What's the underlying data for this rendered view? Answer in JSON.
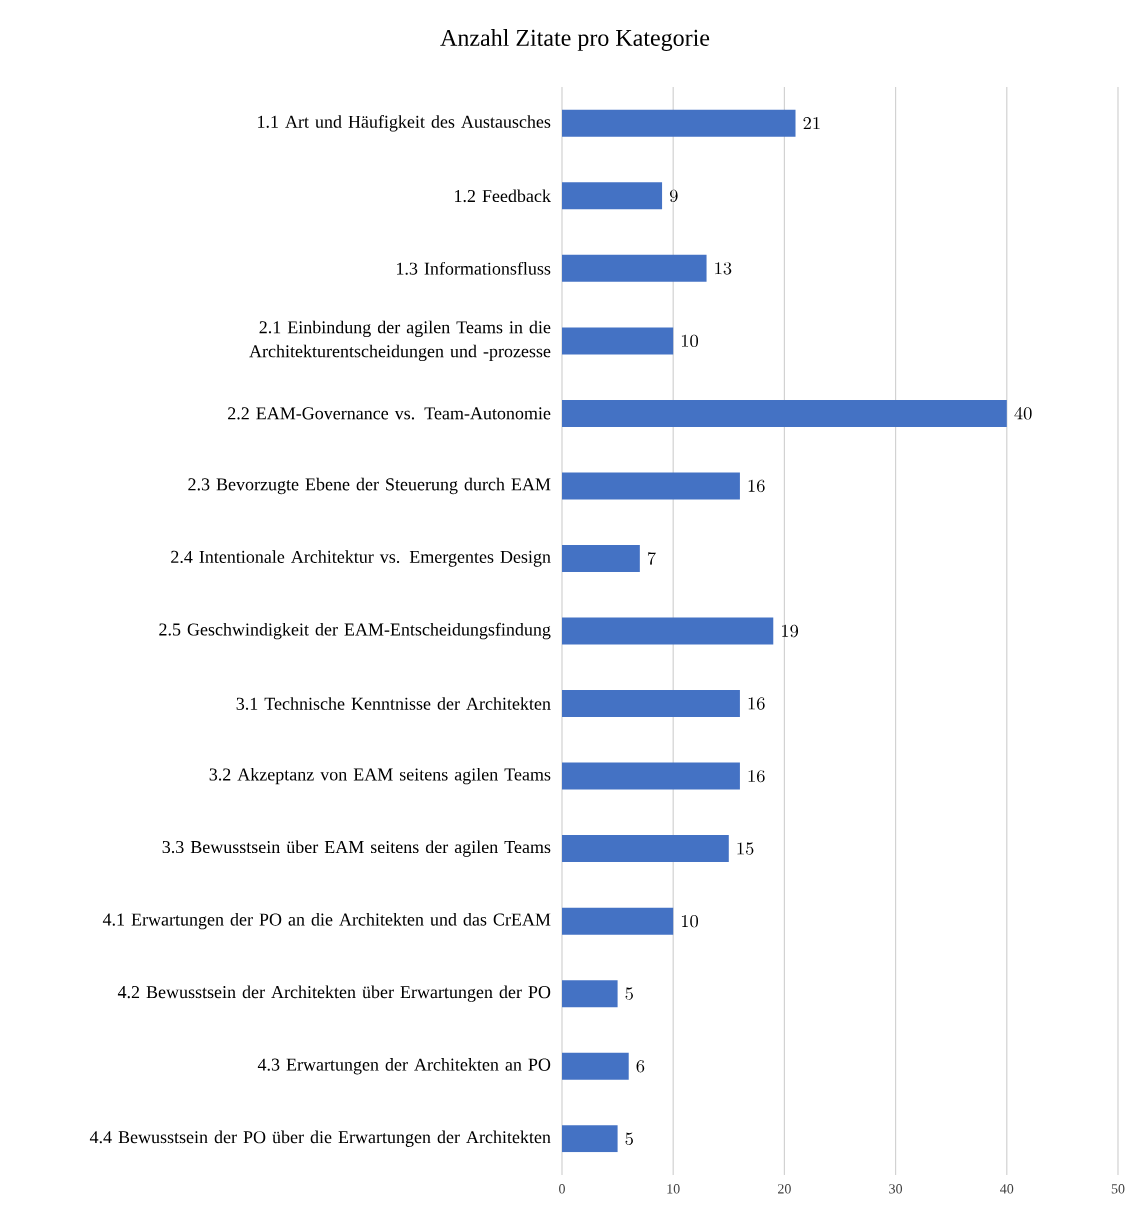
{
  "chart_data": {
    "type": "bar",
    "orientation": "horizontal",
    "title": "Anzahl  Zitate pro Kategorie",
    "categories": [
      "1.1 Art und Häufigkeit des Austausches",
      "1.2 Feedback",
      "1.3 Informationsfluss",
      "2.1 Einbindung der agilen Teams in die Architekturentscheidungen und -prozesse",
      "2.2 EAM-Governance vs. Team-Autonomie",
      "2.3 Bevorzugte Ebene der Steuerung durch EAM",
      "2.4 Intentionale Architektur vs. Emergentes Design",
      "2.5 Geschwindigkeit der EAM-Entscheidungsfindung",
      "3.1 Technische Kenntnisse der Architekten",
      "3.2 Akzeptanz von EAM seitens agilen Teams",
      "3.3 Bewusstsein über EAM seitens der agilen Teams",
      "4.1 Erwartungen der PO an die Architekten und das CrEAM",
      "4.2 Bewusstsein der Architekten über Erwartungen der PO",
      "4.3 Erwartungen der Architekten an PO",
      "4.4 Bewusstsein der PO über die Erwartungen der Architekten"
    ],
    "values": [
      21,
      9,
      13,
      10,
      40,
      16,
      7,
      19,
      16,
      16,
      15,
      10,
      5,
      6,
      5
    ],
    "color": "#4472c4",
    "xlim": [
      0,
      50
    ],
    "xticks": [
      0,
      10,
      20,
      30,
      40,
      50
    ],
    "grid": "x",
    "data_labels": true
  }
}
